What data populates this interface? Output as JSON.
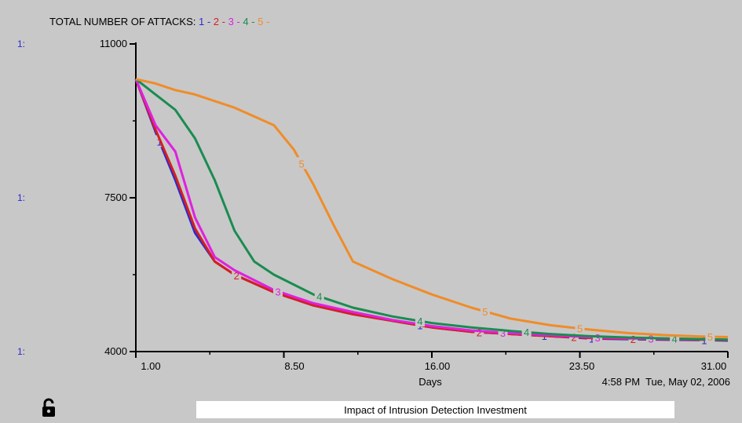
{
  "chart_data": {
    "type": "line",
    "title_prefix": "TOTAL NUMBER OF ATTACKS:",
    "series": [
      {
        "name": "1",
        "color": "#2a2ad0",
        "x": [
          1,
          2,
          3,
          4,
          5,
          6,
          8,
          10,
          12,
          14,
          16,
          18,
          20,
          22,
          24,
          26,
          28,
          30,
          31
        ],
        "values": [
          10200,
          9000,
          7900,
          6700,
          6050,
          5750,
          5350,
          5050,
          4850,
          4700,
          4550,
          4450,
          4400,
          4350,
          4300,
          4280,
          4270,
          4260,
          4250
        ]
      },
      {
        "name": "2",
        "color": "#d81e1e",
        "x": [
          1,
          2,
          3,
          4,
          5,
          6,
          8,
          10,
          12,
          14,
          16,
          18,
          20,
          22,
          24,
          26,
          28,
          30,
          31
        ],
        "values": [
          10200,
          9050,
          8000,
          6800,
          6050,
          5750,
          5350,
          5050,
          4850,
          4700,
          4550,
          4450,
          4400,
          4350,
          4310,
          4290,
          4280,
          4270,
          4260
        ]
      },
      {
        "name": "3",
        "color": "#e020e0",
        "x": [
          1,
          2,
          3,
          4,
          5,
          6,
          8,
          10,
          12,
          14,
          16,
          18,
          20,
          22,
          24,
          26,
          28,
          30,
          31
        ],
        "values": [
          10200,
          9150,
          8550,
          7050,
          6150,
          5850,
          5400,
          5100,
          4900,
          4720,
          4580,
          4480,
          4420,
          4370,
          4330,
          4300,
          4290,
          4280,
          4270
        ]
      },
      {
        "name": "4",
        "color": "#1a8c50",
        "x": [
          1,
          2,
          3,
          4,
          5,
          6,
          7,
          8,
          10,
          12,
          14,
          16,
          18,
          20,
          22,
          24,
          26,
          28,
          30,
          31
        ],
        "values": [
          10200,
          9850,
          9500,
          8850,
          7900,
          6750,
          6050,
          5750,
          5300,
          5000,
          4800,
          4650,
          4550,
          4470,
          4400,
          4350,
          4320,
          4300,
          4280,
          4270
        ]
      },
      {
        "name": "5",
        "color": "#f08c28",
        "x": [
          1,
          2,
          3,
          4,
          5,
          6,
          7,
          8,
          9,
          10,
          11,
          12,
          14,
          16,
          18,
          20,
          22,
          24,
          26,
          28,
          30,
          31
        ],
        "values": [
          10200,
          10100,
          9950,
          9850,
          9700,
          9550,
          9350,
          9150,
          8600,
          7800,
          6900,
          6050,
          5650,
          5300,
          5000,
          4750,
          4600,
          4500,
          4420,
          4370,
          4340,
          4330
        ]
      }
    ],
    "xlabel": "Days",
    "x_ticks": [
      "1.00",
      "8.50",
      "16.00",
      "23.50",
      "31.00"
    ],
    "xlim": [
      1,
      31
    ],
    "y_ticks": [
      "11000",
      "7500",
      "4000"
    ],
    "ylim": [
      4000,
      11000
    ],
    "y_side_label": "1:",
    "grid": false,
    "timestamp": "4:58 PM  Tue, May 02, 2006",
    "caption": "Impact of Intrusion Detection Investment"
  }
}
